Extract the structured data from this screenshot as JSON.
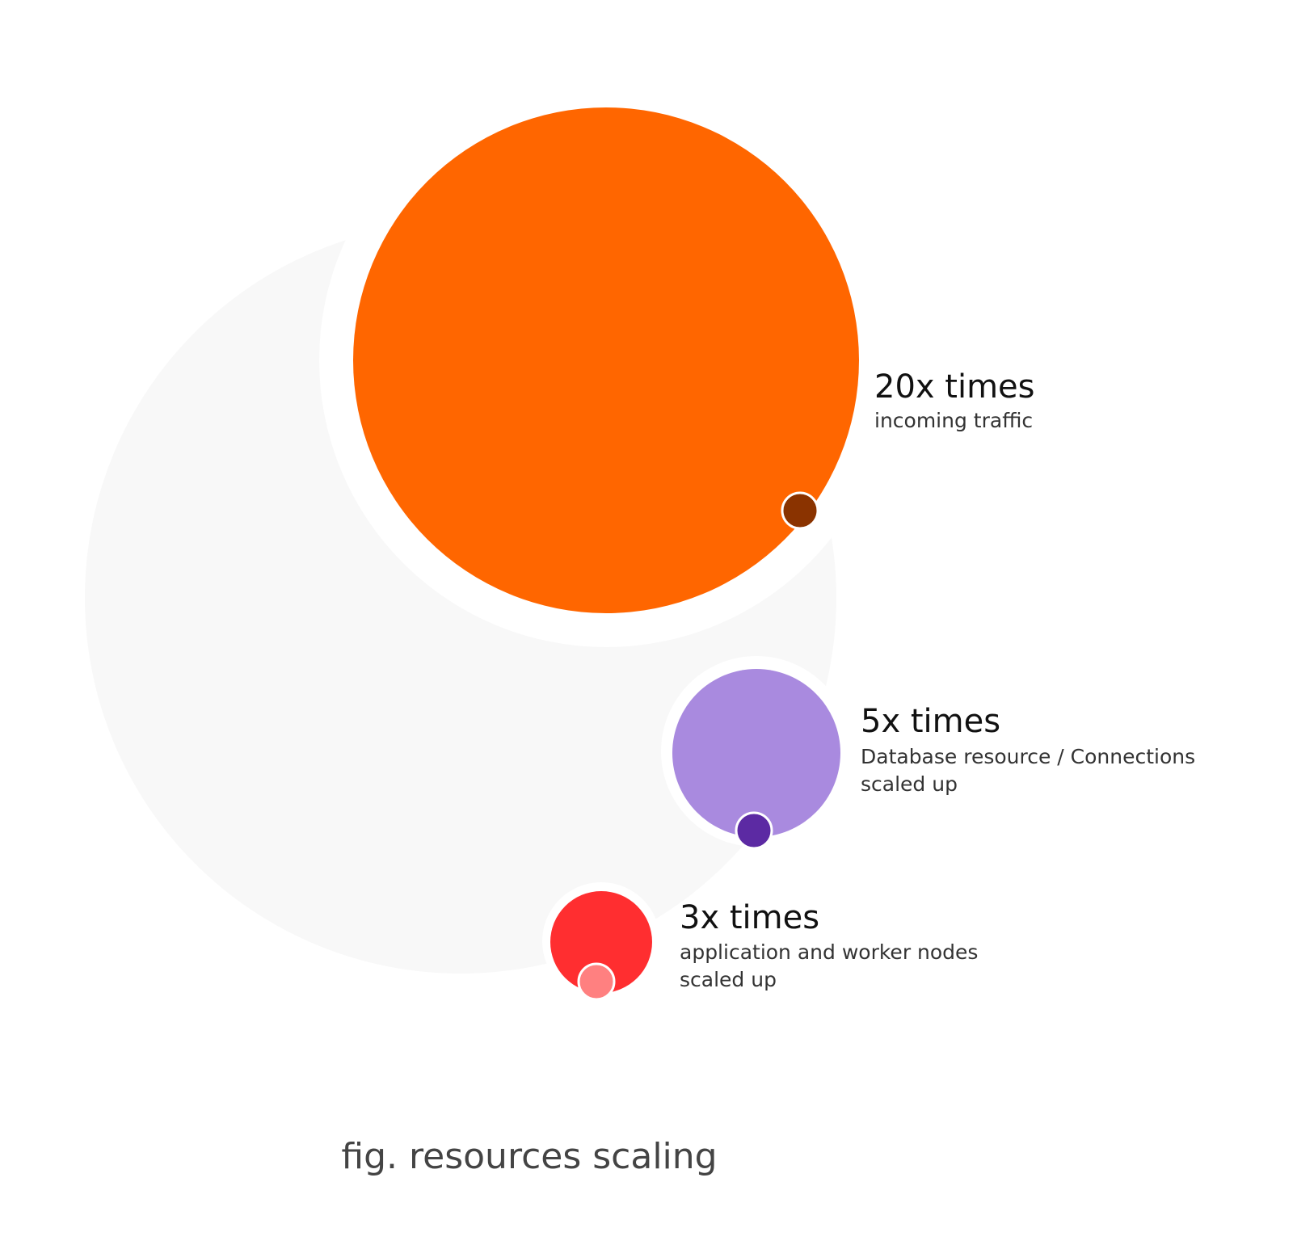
{
  "colors": {
    "background_disc": "#f8f8f8",
    "halo": "#ffffff",
    "traffic_circle": "#ff6600",
    "traffic_dot": "#8a3300",
    "database_circle": "#a98adf",
    "database_dot": "#5c2aa3",
    "app_circle": "#ff2e30",
    "app_dot": "#ff8080"
  },
  "items": [
    {
      "id": "traffic",
      "title": "20x times",
      "lines": [
        "incoming traffic"
      ]
    },
    {
      "id": "database",
      "title": "5x times",
      "lines": [
        "Database resource / Connections",
        "scaled up"
      ]
    },
    {
      "id": "app",
      "title": "3x times",
      "lines": [
        "application and worker nodes",
        "scaled up"
      ]
    }
  ],
  "caption": "fig. resources scaling"
}
